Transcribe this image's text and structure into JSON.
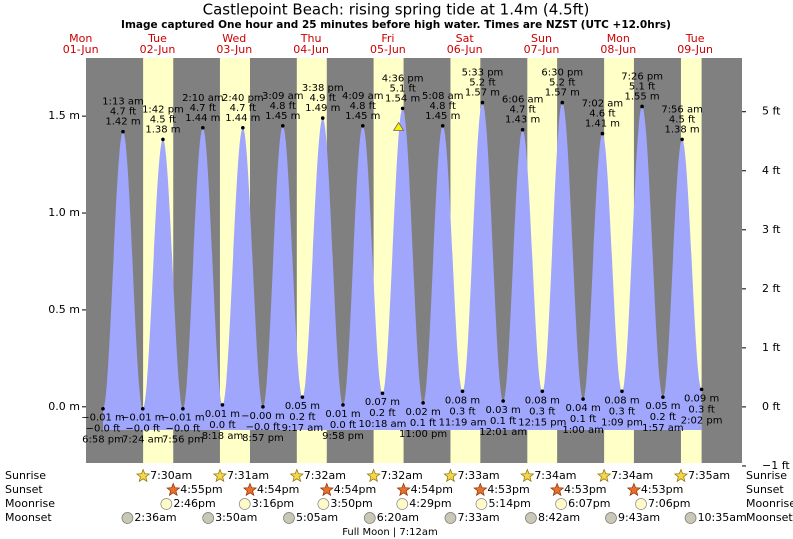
{
  "chart_data": {
    "type": "tide",
    "title": "Castlepoint Beach: rising  spring tide at 1.4m (4.5ft)",
    "subtitle": "Image captured One hour and 25 minutes before high water. Times are NZST (UTC +12.0hrs)",
    "marker_height": 1.4,
    "ylim": [
      -0.29,
      1.8
    ],
    "yticks": [
      {
        "value": 0,
        "label": "0.0 m"
      },
      {
        "value": 0.5,
        "label": "0.5 m"
      },
      {
        "value": 1,
        "label": "1.0 m"
      },
      {
        "value": 1.5,
        "label": "1.5 m"
      }
    ],
    "y2lim": [
      -0.95,
      5.91
    ],
    "y2ticks": [
      {
        "value": -1,
        "label": "−1 ft"
      },
      {
        "value": 0,
        "label": "0 ft"
      },
      {
        "value": 1,
        "label": "1 ft"
      },
      {
        "value": 2,
        "label": "2 ft"
      },
      {
        "value": 3,
        "label": "3 ft"
      },
      {
        "value": 4,
        "label": "4 ft"
      },
      {
        "value": 5,
        "label": "5 ft"
      }
    ],
    "row_labels": [
      "Sunrise",
      "Sunset",
      "Moonrise",
      "Moonset"
    ],
    "full_moon": "Full Moon | 7:12am",
    "colors": {
      "night": "#808080",
      "day": "#ffffc8",
      "tide": "#9fa6fb"
    },
    "days": [
      {
        "name": "Mon",
        "date": "01-Jun",
        "tides": [
          {
            "kind": "low",
            "time": "6:58 pm",
            "m": -0.01,
            "m_label": "−0.01 m",
            "ft": -0.0,
            "ft_label": "−0.0 ft"
          }
        ]
      },
      {
        "name": "Tue",
        "date": "02-Jun",
        "sunrise": "7:30am",
        "sunset": "4:55pm",
        "moonrise": "2:46pm",
        "moonset": "2:36am",
        "tides": [
          {
            "kind": "high",
            "time": "1:13 am",
            "m": 1.42,
            "m_label": "1.42 m",
            "ft": 4.7,
            "ft_label": "4.7 ft"
          },
          {
            "kind": "low",
            "time": "7:24 am",
            "m": -0.01,
            "m_label": "−0.01 m",
            "ft": -0.0,
            "ft_label": "−0.0 ft"
          },
          {
            "kind": "high",
            "time": "1:42 pm",
            "m": 1.38,
            "m_label": "1.38 m",
            "ft": 4.5,
            "ft_label": "4.5 ft"
          },
          {
            "kind": "low",
            "time": "7:56 pm",
            "m": -0.01,
            "m_label": "−0.01 m",
            "ft": -0.0,
            "ft_label": "−0.0 ft"
          }
        ]
      },
      {
        "name": "Wed",
        "date": "03-Jun",
        "sunrise": "7:31am",
        "sunset": "4:54pm",
        "moonrise": "3:16pm",
        "moonset": "3:50am",
        "tides": [
          {
            "kind": "high",
            "time": "2:10 am",
            "m": 1.44,
            "m_label": "1.44 m",
            "ft": 4.7,
            "ft_label": "4.7 ft"
          },
          {
            "kind": "low",
            "time": "8:18 am",
            "m": 0.01,
            "m_label": "0.01 m",
            "ft": 0.0,
            "ft_label": "0.0 ft"
          },
          {
            "kind": "high",
            "time": "2:40 pm",
            "m": 1.44,
            "m_label": "1.44 m",
            "ft": 4.7,
            "ft_label": "4.7 ft"
          },
          {
            "kind": "low",
            "time": "8:57 pm",
            "m": -0.0,
            "m_label": "−0.00 m",
            "ft": -0.0,
            "ft_label": "−0.0 ft"
          }
        ]
      },
      {
        "name": "Thu",
        "date": "04-Jun",
        "sunrise": "7:32am",
        "sunset": "4:54pm",
        "moonrise": "3:50pm",
        "moonset": "5:05am",
        "tides": [
          {
            "kind": "high",
            "time": "3:09 am",
            "m": 1.45,
            "m_label": "1.45 m",
            "ft": 4.8,
            "ft_label": "4.8 ft"
          },
          {
            "kind": "low",
            "time": "9:17 am",
            "m": 0.05,
            "m_label": "0.05 m",
            "ft": 0.2,
            "ft_label": "0.2 ft"
          },
          {
            "kind": "high",
            "time": "3:38 pm",
            "m": 1.49,
            "m_label": "1.49 m",
            "ft": 4.9,
            "ft_label": "4.9 ft"
          },
          {
            "kind": "low",
            "time": "9:58 pm",
            "m": 0.01,
            "m_label": "0.01 m",
            "ft": 0.0,
            "ft_label": "0.0 ft"
          }
        ]
      },
      {
        "name": "Fri",
        "date": "05-Jun",
        "sunrise": "7:32am",
        "sunset": "4:54pm",
        "moonrise": "4:29pm",
        "moonset": "6:20am",
        "tides": [
          {
            "kind": "high",
            "time": "4:09 am",
            "m": 1.45,
            "m_label": "1.45 m",
            "ft": 4.8,
            "ft_label": "4.8 ft"
          },
          {
            "kind": "low",
            "time": "10:18 am",
            "m": 0.07,
            "m_label": "0.07 m",
            "ft": 0.2,
            "ft_label": "0.2 ft"
          },
          {
            "kind": "high",
            "time": "4:36 pm",
            "m": 1.54,
            "m_label": "1.54 m",
            "ft": 5.1,
            "ft_label": "5.1 ft"
          },
          {
            "kind": "low",
            "time": "11:00 pm",
            "m": 0.02,
            "m_label": "0.02 m",
            "ft": 0.1,
            "ft_label": "0.1 ft"
          }
        ]
      },
      {
        "name": "Sat",
        "date": "06-Jun",
        "sunrise": "7:33am",
        "sunset": "4:53pm",
        "moonrise": "5:14pm",
        "moonset": "7:33am",
        "tides": [
          {
            "kind": "high",
            "time": "5:08 am",
            "m": 1.45,
            "m_label": "1.45 m",
            "ft": 4.8,
            "ft_label": "4.8 ft"
          },
          {
            "kind": "low",
            "time": "11:19 am",
            "m": 0.08,
            "m_label": "0.08 m",
            "ft": 0.3,
            "ft_label": "0.3 ft"
          },
          {
            "kind": "high",
            "time": "5:33 pm",
            "m": 1.57,
            "m_label": "1.57 m",
            "ft": 5.2,
            "ft_label": "5.2 ft"
          }
        ]
      },
      {
        "name": "Sun",
        "date": "07-Jun",
        "sunrise": "7:34am",
        "sunset": "4:53pm",
        "moonrise": "6:07pm",
        "moonset": "8:42am",
        "tides": [
          {
            "kind": "low",
            "time": "12:01 am",
            "m": 0.03,
            "m_label": "0.03 m",
            "ft": 0.1,
            "ft_label": "0.1 ft"
          },
          {
            "kind": "high",
            "time": "6:06 am",
            "m": 1.43,
            "m_label": "1.43 m",
            "ft": 4.7,
            "ft_label": "4.7 ft"
          },
          {
            "kind": "low",
            "time": "12:15 pm",
            "m": 0.08,
            "m_label": "0.08 m",
            "ft": 0.3,
            "ft_label": "0.3 ft"
          },
          {
            "kind": "high",
            "time": "6:30 pm",
            "m": 1.57,
            "m_label": "1.57 m",
            "ft": 5.2,
            "ft_label": "5.2 ft"
          }
        ]
      },
      {
        "name": "Mon",
        "date": "08-Jun",
        "sunrise": "7:34am",
        "sunset": "4:53pm",
        "moonrise": "7:06pm",
        "moonset": "9:43am",
        "tides": [
          {
            "kind": "low",
            "time": "1:00 am",
            "m": 0.04,
            "m_label": "0.04 m",
            "ft": 0.1,
            "ft_label": "0.1 ft"
          },
          {
            "kind": "high",
            "time": "7:02 am",
            "m": 1.41,
            "m_label": "1.41 m",
            "ft": 4.6,
            "ft_label": "4.6 ft"
          },
          {
            "kind": "low",
            "time": "1:09 pm",
            "m": 0.08,
            "m_label": "0.08 m",
            "ft": 0.3,
            "ft_label": "0.3 ft"
          },
          {
            "kind": "high",
            "time": "7:26 pm",
            "m": 1.55,
            "m_label": "1.55 m",
            "ft": 5.1,
            "ft_label": "5.1 ft"
          }
        ]
      },
      {
        "name": "Tue",
        "date": "09-Jun",
        "sunrise": "7:35am",
        "moonset": "10:35am",
        "tides": [
          {
            "kind": "low",
            "time": "1:57 am",
            "m": 0.05,
            "m_label": "0.05 m",
            "ft": 0.2,
            "ft_label": "0.2 ft"
          },
          {
            "kind": "high",
            "time": "7:56 am",
            "m": 1.38,
            "m_label": "1.38 m",
            "ft": 4.5,
            "ft_label": "4.5 ft"
          },
          {
            "kind": "low",
            "time": "2:02 pm",
            "m": 0.09,
            "m_label": "0.09 m",
            "ft": 0.3,
            "ft_label": "0.3 ft"
          }
        ]
      }
    ]
  }
}
